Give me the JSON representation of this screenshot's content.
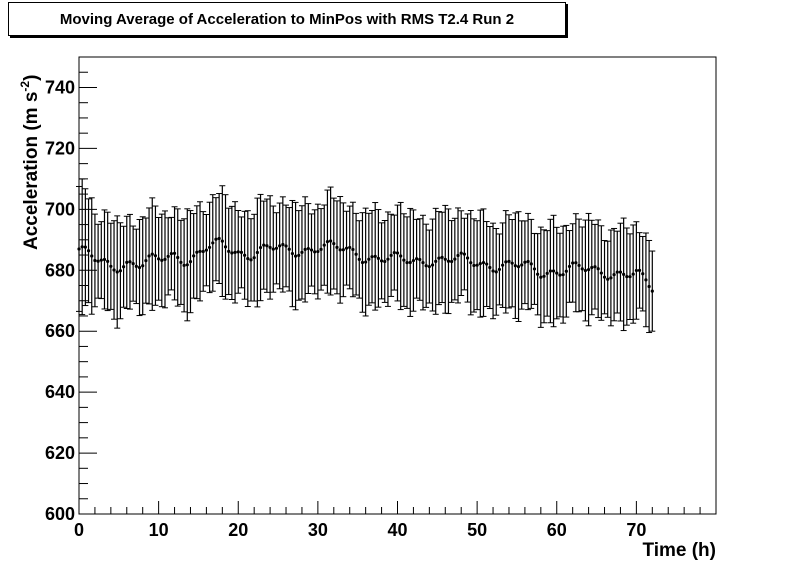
{
  "chart_data": {
    "type": "scatter",
    "title": "Moving Average of Acceleration to MinPos with RMS T2.4 Run 2",
    "xlabel": "Time (h)",
    "ylabel": "Acceleration (m s",
    "ylabel_sup": "-2",
    "ylabel_end": ")",
    "xlim": [
      0,
      80
    ],
    "ylim": [
      600,
      750
    ],
    "x_ticks": [
      "0",
      "10",
      "20",
      "30",
      "40",
      "50",
      "60",
      "70"
    ],
    "y_ticks": [
      "600",
      "620",
      "640",
      "660",
      "680",
      "700",
      "720",
      "740"
    ],
    "grid": false,
    "legend": "none",
    "error_bar": "RMS (approx. ±15)",
    "series": [
      {
        "x": [
          0,
          2,
          4,
          6,
          8,
          10,
          12,
          14,
          16,
          18,
          20,
          22,
          24,
          26,
          28,
          30,
          32,
          34,
          36,
          38,
          40,
          42,
          44,
          46,
          48,
          50,
          52,
          54,
          56,
          58,
          60,
          62,
          64,
          66,
          68,
          70,
          72
        ],
        "y": [
          687,
          683,
          681,
          683,
          682,
          683,
          685,
          684,
          687,
          688,
          686,
          686,
          687,
          686,
          687,
          688,
          687,
          686,
          685,
          684,
          683,
          683,
          684,
          683,
          683,
          683,
          682,
          681,
          681,
          680,
          680,
          680,
          680,
          680,
          679,
          678,
          674
        ]
      }
    ]
  }
}
